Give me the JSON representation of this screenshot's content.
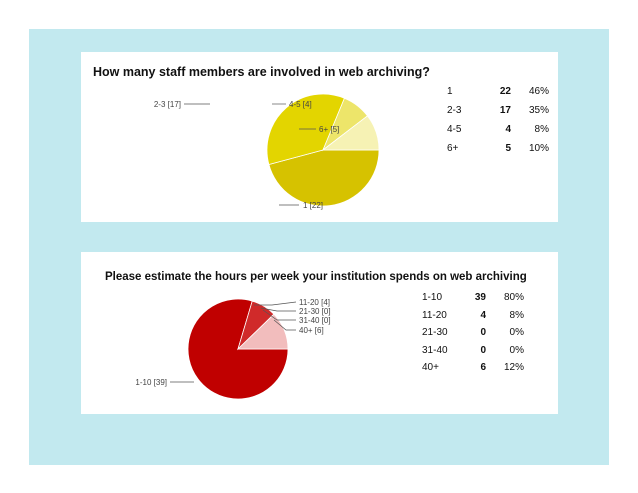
{
  "chart_data": [
    {
      "type": "pie",
      "title": "How many staff members are involved in web archiving?",
      "categories": [
        "1",
        "2-3",
        "4-5",
        "6+"
      ],
      "values": [
        22,
        17,
        4,
        5
      ],
      "percentages": [
        "46%",
        "35%",
        "8%",
        "10%"
      ],
      "slice_labels": [
        "1 [22]",
        "2-3 [17]",
        "4-5 [4]",
        "6+ [5]"
      ],
      "colors": [
        "#d6c200",
        "#e3d500",
        "#ede56a",
        "#f6f2b4"
      ]
    },
    {
      "type": "pie",
      "title": "Please estimate the hours per week your institution spends on web archiving",
      "categories": [
        "1-10",
        "11-20",
        "21-30",
        "31-40",
        "40+"
      ],
      "values": [
        39,
        4,
        0,
        0,
        6
      ],
      "percentages": [
        "80%",
        "8%",
        "0%",
        "0%",
        "12%"
      ],
      "slice_labels": [
        "1-10 [39]",
        "11-20 [4]",
        "21-30 [0]",
        "31-40 [0]",
        "40+ [6]"
      ],
      "colors": [
        "#c00000",
        "#d02a2a",
        "#dd6060",
        "#e48a8a",
        "#f2bdbd"
      ]
    }
  ]
}
